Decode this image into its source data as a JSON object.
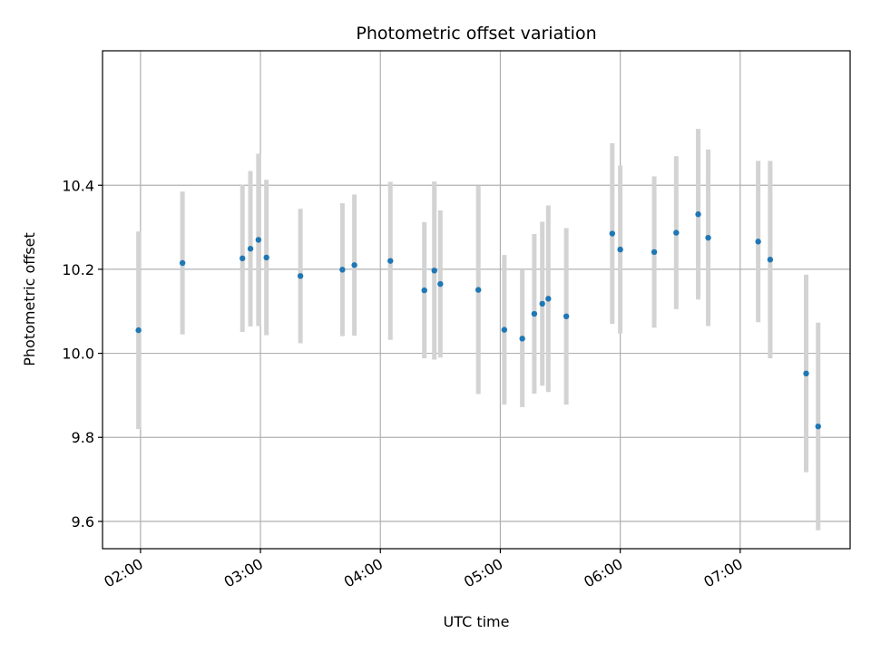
{
  "chart_data": {
    "type": "scatter",
    "title": "Photometric offset variation",
    "xlabel": "UTC time",
    "ylabel": "Photometric offset",
    "x_axis": "time",
    "xlim": [
      "01:41",
      "07:55"
    ],
    "ylim": [
      9.535,
      10.72
    ],
    "x_ticks": [
      "02:00",
      "03:00",
      "04:00",
      "05:00",
      "06:00",
      "07:00"
    ],
    "y_ticks": [
      9.6,
      9.8,
      10.0,
      10.2,
      10.4
    ],
    "y_tick_labels": [
      "9.6",
      "9.8",
      "10.0",
      "10.2",
      "10.4"
    ],
    "grid": true,
    "marker_color": "#1f77b4",
    "errorbar_color": "#d3d3d3",
    "points": [
      {
        "x": "01:59",
        "y": 10.055,
        "err": 0.235
      },
      {
        "x": "02:21",
        "y": 10.215,
        "err": 0.17
      },
      {
        "x": "02:51",
        "y": 10.226,
        "err": 0.175
      },
      {
        "x": "02:55",
        "y": 10.249,
        "err": 0.185
      },
      {
        "x": "02:59",
        "y": 10.27,
        "err": 0.205
      },
      {
        "x": "03:03",
        "y": 10.228,
        "err": 0.185
      },
      {
        "x": "03:20",
        "y": 10.184,
        "err": 0.16
      },
      {
        "x": "03:41",
        "y": 10.199,
        "err": 0.158
      },
      {
        "x": "03:47",
        "y": 10.21,
        "err": 0.168
      },
      {
        "x": "04:05",
        "y": 10.22,
        "err": 0.188
      },
      {
        "x": "04:22",
        "y": 10.15,
        "err": 0.162
      },
      {
        "x": "04:27",
        "y": 10.197,
        "err": 0.212
      },
      {
        "x": "04:30",
        "y": 10.165,
        "err": 0.175
      },
      {
        "x": "04:49",
        "y": 10.151,
        "err": 0.248
      },
      {
        "x": "05:02",
        "y": 10.056,
        "err": 0.178
      },
      {
        "x": "05:11",
        "y": 10.035,
        "err": 0.163
      },
      {
        "x": "05:17",
        "y": 10.094,
        "err": 0.19
      },
      {
        "x": "05:21",
        "y": 10.118,
        "err": 0.195
      },
      {
        "x": "05:24",
        "y": 10.13,
        "err": 0.222
      },
      {
        "x": "05:33",
        "y": 10.088,
        "err": 0.21
      },
      {
        "x": "05:56",
        "y": 10.285,
        "err": 0.215
      },
      {
        "x": "06:00",
        "y": 10.247,
        "err": 0.2
      },
      {
        "x": "06:17",
        "y": 10.241,
        "err": 0.18
      },
      {
        "x": "06:28",
        "y": 10.287,
        "err": 0.182
      },
      {
        "x": "06:39",
        "y": 10.331,
        "err": 0.203
      },
      {
        "x": "06:44",
        "y": 10.275,
        "err": 0.21
      },
      {
        "x": "07:09",
        "y": 10.266,
        "err": 0.192
      },
      {
        "x": "07:15",
        "y": 10.223,
        "err": 0.235
      },
      {
        "x": "07:33",
        "y": 9.952,
        "err": 0.235
      },
      {
        "x": "07:39",
        "y": 9.826,
        "err": 0.247
      }
    ]
  }
}
